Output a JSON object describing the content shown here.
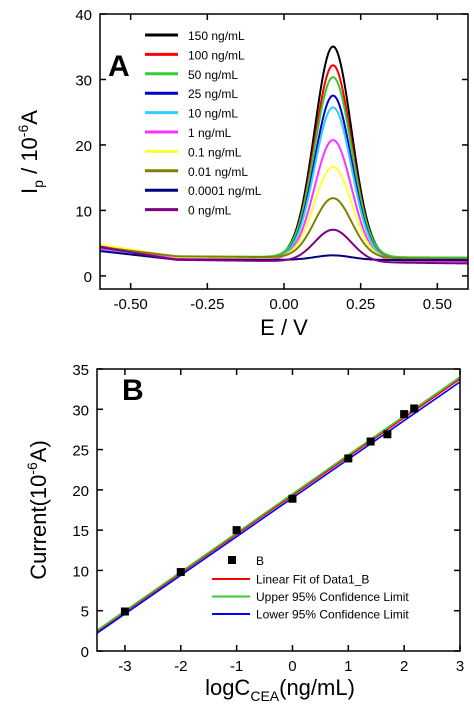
{
  "chart_data": [
    {
      "type": "line",
      "panel_label": "A",
      "xlabel": "E / V",
      "ylabel_main": "I",
      "ylabel_sub": "p",
      "ylabel_mid": " / 10",
      "ylabel_sup": "-6",
      "ylabel_unit": "A",
      "xlim": [
        -0.6,
        0.6
      ],
      "ylim": [
        -2,
        40
      ],
      "xticks": [
        -0.5,
        -0.25,
        0.0,
        0.25,
        0.5
      ],
      "xtick_labels": [
        "-0.50",
        "-0.25",
        "0.00",
        "0.25",
        "0.50"
      ],
      "yticks": [
        0,
        10,
        20,
        30,
        40
      ],
      "ytick_labels": [
        "0",
        "10",
        "20",
        "30",
        "40"
      ],
      "legend_position": "top-left",
      "peak_center_v": 0.16,
      "series": [
        {
          "name": "150 ng/mL",
          "color": "#000000",
          "peak": 35.3,
          "base_left": 2.9,
          "base_right": 2.5
        },
        {
          "name": "100 ng/mL",
          "color": "#ff0000",
          "peak": 32.5,
          "base_left": 2.9,
          "base_right": 2.4
        },
        {
          "name": "50 ng/mL",
          "color": "#33cc33",
          "peak": 30.5,
          "base_left": 3.0,
          "base_right": 2.8
        },
        {
          "name": "25 ng/mL",
          "color": "#0000cc",
          "peak": 27.8,
          "base_left": 2.7,
          "base_right": 2.3
        },
        {
          "name": "10 ng/mL",
          "color": "#33ccff",
          "peak": 26.0,
          "base_left": 2.8,
          "base_right": 2.4
        },
        {
          "name": "1 ng/mL",
          "color": "#ff33ff",
          "peak": 21.2,
          "base_left": 2.9,
          "base_right": 2.2
        },
        {
          "name": "0.1 ng/mL",
          "color": "#ffff33",
          "peak": 17.0,
          "base_left": 3.0,
          "base_right": 2.5
        },
        {
          "name": "0.01 ng/mL",
          "color": "#808000",
          "peak": 12.2,
          "base_left": 3.1,
          "base_right": 2.6
        },
        {
          "name": "0.0001 ng/mL",
          "color": "#000080",
          "peak": 3.2,
          "base_left": 2.5,
          "base_right": 2.4
        },
        {
          "name": "0 ng/mL",
          "color": "#800080",
          "peak": 7.5,
          "base_left": 2.6,
          "base_right": 1.9
        }
      ]
    },
    {
      "type": "scatter",
      "panel_label": "B",
      "xlabel_main": "logC",
      "xlabel_sub": "CEA",
      "xlabel_unit": "(ng/mL)",
      "ylabel": "Current(10",
      "ylabel_sup": "-6",
      "ylabel_unit": "A)",
      "xlim": [
        -3.5,
        3
      ],
      "ylim": [
        0,
        35
      ],
      "xticks": [
        -3,
        -2,
        -1,
        0,
        1,
        2,
        3
      ],
      "xtick_labels": [
        "-3",
        "-2",
        "-1",
        "0",
        "1",
        "2",
        "3"
      ],
      "yticks": [
        0,
        5,
        10,
        15,
        20,
        25,
        30,
        35
      ],
      "ytick_labels": [
        "0",
        "5",
        "10",
        "15",
        "20",
        "25",
        "30",
        "35"
      ],
      "legend_position": "bottom-right",
      "points": {
        "name": "B",
        "x": [
          -3,
          -2,
          -1,
          0,
          1,
          1.4,
          1.7,
          2,
          2.18
        ],
        "y": [
          4.9,
          9.8,
          15.0,
          18.9,
          23.9,
          26.0,
          26.9,
          29.4,
          30.1
        ]
      },
      "fits": [
        {
          "name": "Linear Fit of Data1_B",
          "color": "#ff0000",
          "slope": 4.82,
          "intercept": 19.3
        },
        {
          "name": "Upper 95% Confidence Limit",
          "color": "#33cc33",
          "slope": 4.84,
          "intercept": 19.5
        },
        {
          "name": "Lower 95% Confidence Limit",
          "color": "#0000ff",
          "slope": 4.8,
          "intercept": 19.0
        }
      ]
    }
  ]
}
